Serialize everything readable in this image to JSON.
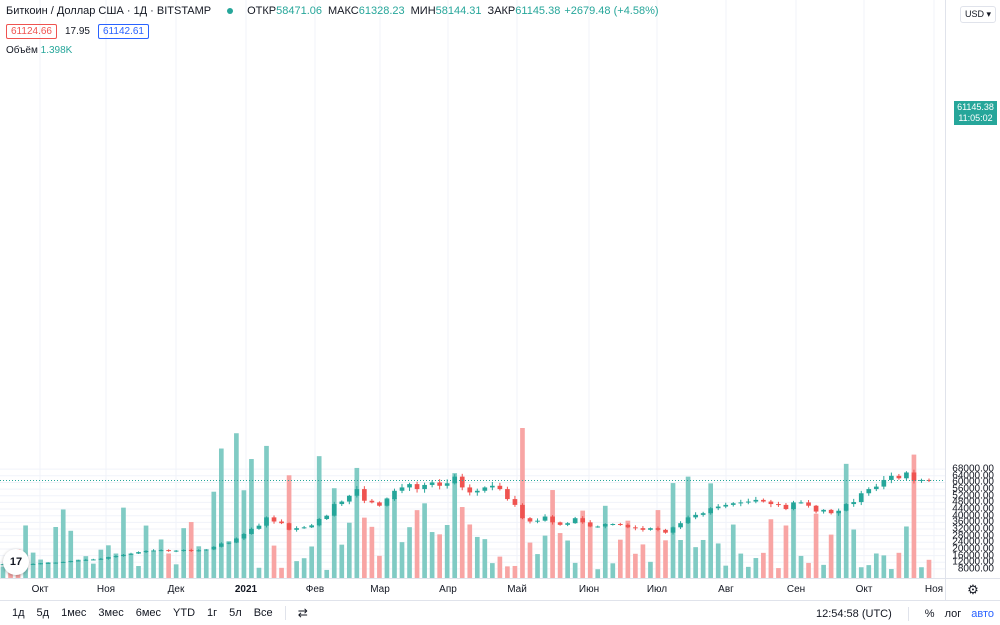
{
  "header": {
    "symbol": "Биткоин / Доллар США · 1Д · BITSTAMP",
    "open_label": "ОТКР",
    "open_value": "58471.06",
    "high_label": "МАКС",
    "high_value": "61328.23",
    "low_label": "МИН",
    "low_value": "58144.31",
    "close_label": "ЗАКР",
    "close_value": "61145.38",
    "change_value": "+2679.48 (+4.58%)",
    "bid": "61124.66",
    "spread": "17.95",
    "ask": "61142.61",
    "volume_label": "Объём",
    "volume_value": "1.398K",
    "currency": "USD ▾"
  },
  "price_label": {
    "price": "61145.38",
    "countdown": "11:05:02"
  },
  "colors": {
    "up": "#26a69a",
    "down": "#ef5350",
    "up_volume": "#80cbc4",
    "down_volume": "#f8a5a4",
    "grid": "#f0f3fa"
  },
  "bottom_bar": {
    "ranges": [
      "1д",
      "5д",
      "1мес",
      "3мес",
      "6мес",
      "YTD",
      "1г",
      "5л",
      "Все"
    ],
    "time": "12:54:58 (UTC)",
    "percent": "%",
    "log": "лог",
    "auto": "авто"
  },
  "icons": {
    "goto": "calendar-goto-icon",
    "settings": "gear-icon",
    "logo": "tradingview-logo"
  },
  "chart_data": {
    "type": "candlestick",
    "title": "Биткоин / Доллар США · 1Д · BITSTAMP",
    "yticks": [
      8000,
      12000,
      16000,
      20000,
      24000,
      28000,
      32000,
      36000,
      40000,
      44000,
      48000,
      52000,
      56000,
      60000,
      64000,
      68000
    ],
    "ytick_labels": [
      "8000.00",
      "12000.00",
      "16000.00",
      "20000.00",
      "24000.00",
      "28000.00",
      "32000.00",
      "36000.00",
      "40000.00",
      "44000.00",
      "48000.00",
      "52000.00",
      "56000.00",
      "60000.00",
      "64000.00",
      "68000.00"
    ],
    "ylim": [
      0,
      72000
    ],
    "xticks": [
      "Окт",
      "Ноя",
      "Дек",
      "2021",
      "Фев",
      "Мар",
      "Апр",
      "Май",
      "Июн",
      "Июл",
      "Авг",
      "Сен",
      "Окт",
      "Ноя"
    ],
    "last_price": 61145.38,
    "series": [
      {
        "name": "Биткоин / Доллар США",
        "close": [
          10800,
          10700,
          10600,
          10900,
          11000,
          11400,
          11600,
          11800,
          12200,
          12700,
          13100,
          13500,
          13700,
          14100,
          15100,
          15700,
          16500,
          17200,
          18100,
          18800,
          19100,
          19300,
          18700,
          19000,
          19400,
          18900,
          19200,
          19700,
          21300,
          23300,
          23800,
          26300,
          29000,
          32100,
          34000,
          39000,
          36500,
          35500,
          31500,
          32500,
          33000,
          34200,
          38000,
          40000,
          47000,
          48500,
          52000,
          56000,
          49000,
          48000,
          46000,
          50000,
          55000,
          57000,
          59000,
          56000,
          58500,
          60000,
          58000,
          59500,
          63500,
          57000,
          54000,
          55000,
          57000,
          58000,
          56000,
          50000,
          46500,
          38500,
          36500,
          37000,
          39500,
          36000,
          34500,
          35500,
          38500,
          36000,
          33500,
          33500,
          35000,
          35000,
          34500,
          33000,
          32500,
          31500,
          32500,
          31500,
          29800,
          33000,
          35500,
          39000,
          40500,
          41500,
          44500,
          45500,
          46500,
          47500,
          48000,
          48500,
          49500,
          48500,
          47000,
          46500,
          44000,
          48000,
          48000,
          46000,
          42500,
          43500,
          41500,
          43000,
          47000,
          48200,
          53500,
          56000,
          57500,
          61500,
          64000,
          62500,
          66000,
          61000,
          61500,
          61145
        ]
      }
    ],
    "volume": {
      "name": "Объём",
      "latest": "1.398K"
    }
  }
}
